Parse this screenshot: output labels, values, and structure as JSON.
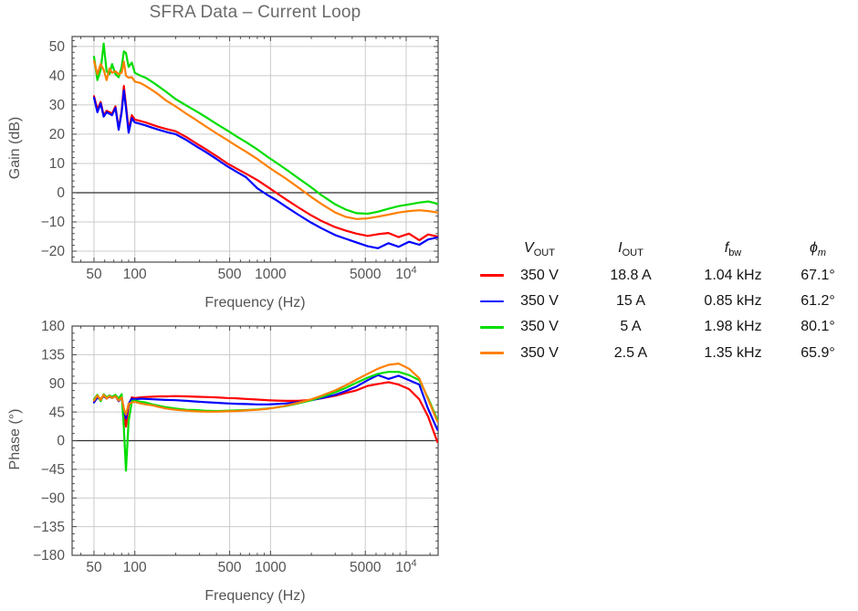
{
  "title": "SFRA Data – Current Loop",
  "theme": {
    "background": "#ffffff",
    "frame_color": "#4a4a4a",
    "grid_color": "#cbcbcb",
    "zero_line_color": "#2f2f2f",
    "tick_label_color": "#545454",
    "title_color": "#6a6a6a",
    "legend_text_color": "#141414",
    "series_colors": [
      "#ff0000",
      "#0000ff",
      "#00dd00",
      "#ff8000"
    ]
  },
  "legend": {
    "headers": [
      {
        "base": "V",
        "sub": "OUT",
        "italic_base": true,
        "italic_sub": false
      },
      {
        "base": "I",
        "sub": "OUT",
        "italic_base": true,
        "italic_sub": false
      },
      {
        "base": "f",
        "sub": "bw",
        "italic_base": true,
        "italic_sub": false
      },
      {
        "base": "ϕ",
        "sub": "m",
        "italic_base": true,
        "italic_sub": true
      }
    ],
    "rows": [
      {
        "color": "#ff0000",
        "vout": "350 V",
        "iout": "18.8 A",
        "fbw": "1.04 kHz",
        "phim": "67.1°"
      },
      {
        "color": "#0000ff",
        "vout": "350 V",
        "iout": "15 A",
        "fbw": "0.85 kHz",
        "phim": "61.2°"
      },
      {
        "color": "#00dd00",
        "vout": "350 V",
        "iout": "5 A",
        "fbw": "1.98 kHz",
        "phim": "80.1°"
      },
      {
        "color": "#ff8000",
        "vout": "350 V",
        "iout": "2.5 A",
        "fbw": "1.35 kHz",
        "phim": "65.9°"
      }
    ]
  },
  "chart_data": {
    "type": "line",
    "x_scale": "log",
    "xlabel": "Frequency (Hz)",
    "xlim": [
      34.5,
      17200
    ],
    "x_ticks": [
      50,
      100,
      500,
      1000,
      5000,
      10000
    ],
    "x_tick_labels": [
      "50",
      "100",
      "500",
      "1000",
      "5000",
      "10^4"
    ],
    "frequencies": [
      50,
      53,
      56,
      59,
      62,
      65,
      68,
      72,
      76,
      80,
      83,
      86,
      90,
      95,
      100,
      110,
      120,
      135,
      150,
      170,
      200,
      240,
      280,
      330,
      400,
      480,
      560,
      660,
      800,
      950,
      1100,
      1300,
      1600,
      2000,
      2400,
      3000,
      3600,
      4300,
      5200,
      6200,
      7400,
      8800,
      10500,
      12500,
      14500,
      17000
    ],
    "charts": [
      {
        "name": "gain",
        "ylabel": "Gain (dB)",
        "ylim": [
          -23.75,
          53.4
        ],
        "yticks": [
          -20,
          -10,
          0,
          10,
          20,
          30,
          40,
          50
        ],
        "ytick_labels": [
          "−20",
          "−10",
          "0",
          "10",
          "20",
          "30",
          "40",
          "50"
        ],
        "grid": true,
        "series": [
          {
            "name": "350 V / 18.8 A",
            "color": "#ff0000",
            "values": [
              33,
              28.5,
              31,
              26.5,
              28,
              27.5,
              27,
              29.5,
              22,
              28,
              36.5,
              30,
              21.5,
              26.5,
              25,
              24.5,
              24,
              23.2,
              22.5,
              21.8,
              21,
              19,
              17,
              15,
              12.5,
              10,
              8.3,
              6.5,
              4.3,
              2,
              0,
              -2.3,
              -5,
              -7.8,
              -9.8,
              -11.8,
              -13,
              -14,
              -14.8,
              -14.2,
              -13.8,
              -15.2,
              -14,
              -16.3,
              -14.3,
              -15
            ]
          },
          {
            "name": "350 V / 15 A",
            "color": "#0000ff",
            "values": [
              32.5,
              27.5,
              30.5,
              26,
              27.5,
              27,
              26.5,
              29,
              21.5,
              27.5,
              35,
              29,
              20.5,
              25.5,
              24,
              23.5,
              23,
              22.2,
              21.5,
              20.8,
              20,
              18,
              16,
              14,
              11.5,
              9,
              7.2,
              5.3,
              1.5,
              -0.8,
              -2.5,
              -4.8,
              -7.5,
              -10.3,
              -12.3,
              -14.5,
              -15.8,
              -17,
              -18.3,
              -19,
              -17.3,
              -18.5,
              -16.8,
              -17.8,
              -16,
              -15.3
            ]
          },
          {
            "name": "350 V / 5 A",
            "color": "#00dd00",
            "values": [
              46.5,
              38.5,
              42,
              51,
              41.5,
              40.5,
              44,
              40.5,
              39.5,
              43,
              48.3,
              47.8,
              43,
              44.5,
              41,
              40,
              39.3,
              37.8,
              36.3,
              34.5,
              32,
              29.8,
              28,
              26,
              23.5,
              21.3,
              19.3,
              17.3,
              14.8,
              12.3,
              10.3,
              8,
              5,
              1.8,
              -1,
              -4,
              -5.8,
              -7,
              -7.2,
              -6.5,
              -5.5,
              -4.6,
              -4,
              -3.4,
              -3,
              -3.8
            ]
          },
          {
            "name": "350 V / 2.5 A",
            "color": "#ff8000",
            "values": [
              45,
              40.5,
              44,
              42,
              38.5,
              42.5,
              41,
              41.5,
              40.5,
              41,
              44.8,
              40,
              39.3,
              39.5,
              38,
              37.5,
              36.5,
              35,
              33.5,
              31.5,
              29.5,
              27,
              25,
              22.8,
              20.3,
              18,
              16,
              14,
              11.5,
              9,
              7,
              4.8,
              1.8,
              -1.5,
              -4,
              -6.8,
              -8.3,
              -9,
              -8.8,
              -8.2,
              -7.5,
              -6.8,
              -6.3,
              -6,
              -6.3,
              -6.8
            ]
          }
        ]
      },
      {
        "name": "phase",
        "ylabel": "Phase (°)",
        "ylim": [
          -180,
          180
        ],
        "yticks": [
          -180,
          -135,
          -90,
          -45,
          0,
          45,
          90,
          135,
          180
        ],
        "ytick_labels": [
          "−180",
          "−135",
          "−90",
          "−45",
          "0",
          "45",
          "90",
          "135",
          "180"
        ],
        "grid": true,
        "series": [
          {
            "name": "350 V / 18.8 A",
            "color": "#ff0000",
            "values": [
              62,
              70,
              65,
              72,
              67,
              70,
              68,
              71,
              64,
              70,
              45,
              22,
              55,
              68,
              67,
              68,
              68.5,
              69,
              69.5,
              69.5,
              70,
              69.5,
              69,
              68.5,
              68,
              67,
              66.5,
              65.5,
              64.5,
              63.5,
              63,
              62.5,
              62.5,
              64,
              66.5,
              70.5,
              75,
              79,
              86,
              89,
              92,
              88,
              81,
              65,
              38,
              -2
            ]
          },
          {
            "name": "350 V / 15 A",
            "color": "#0000ff",
            "values": [
              60,
              68,
              64,
              70,
              66,
              69,
              67,
              70,
              62,
              68,
              50,
              35,
              58,
              66,
              65,
              66,
              65.5,
              65,
              64.5,
              64,
              63.5,
              62.5,
              61.5,
              60.5,
              59.5,
              58.5,
              58,
              57.5,
              57,
              57,
              57.5,
              58.5,
              60.5,
              63.5,
              67,
              72,
              78,
              85,
              95,
              103,
              97,
              102,
              95,
              88,
              50,
              17
            ]
          },
          {
            "name": "350 V / 5 A",
            "color": "#00dd00",
            "values": [
              65,
              72,
              62,
              73,
              68,
              71,
              69,
              72,
              66,
              73,
              20,
              -47,
              30,
              62,
              63,
              61,
              60,
              57,
              55,
              52.5,
              50.5,
              48.5,
              48,
              47,
              46.5,
              47,
              47.5,
              48,
              49,
              50.5,
              52,
              54.5,
              58.5,
              63.5,
              69,
              76,
              83,
              91,
              99,
              105,
              108,
              108,
              103,
              95,
              67,
              33
            ]
          },
          {
            "name": "350 V / 2.5 A",
            "color": "#ff8000",
            "values": [
              63,
              71,
              64,
              72,
              66,
              70,
              67,
              70,
              63,
              68,
              50,
              41,
              58,
              60,
              61,
              58.5,
              57,
              55.5,
              53,
              50.5,
              48.5,
              47,
              46,
              45.5,
              45.5,
              46,
              46.5,
              47.5,
              48.5,
              50,
              52,
              55,
              59.5,
              65,
              71,
              79,
              87,
              96,
              105,
              113,
              119,
              121,
              113,
              98,
              65,
              30
            ]
          }
        ]
      }
    ]
  }
}
